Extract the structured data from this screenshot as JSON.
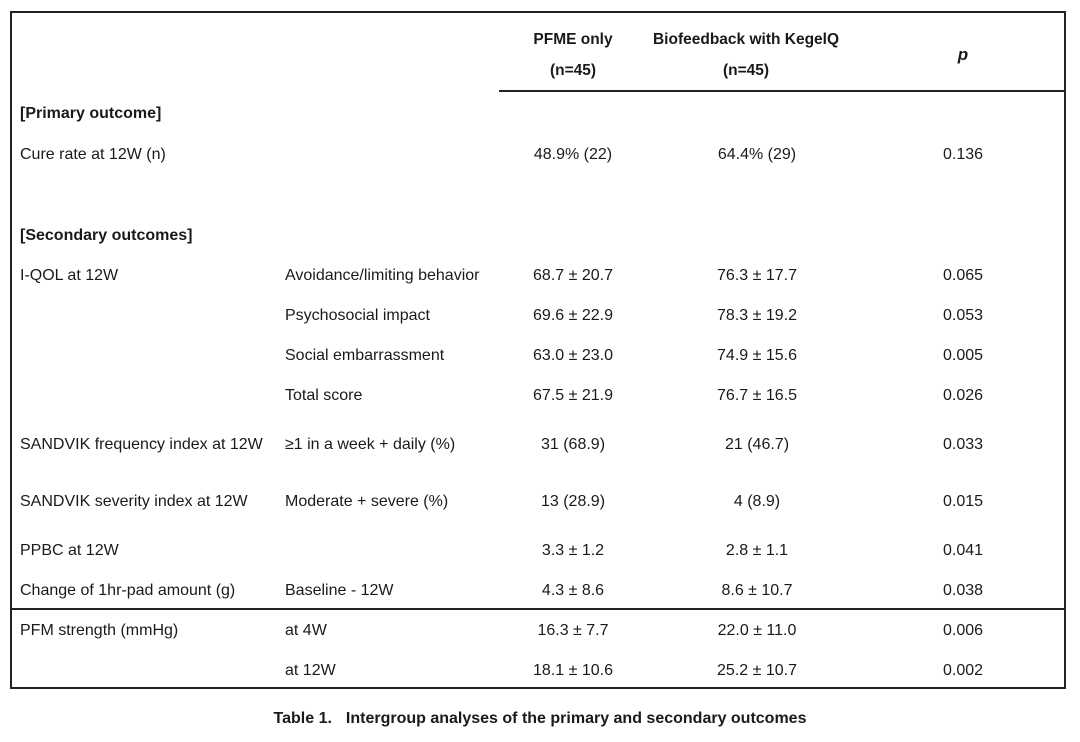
{
  "header": {
    "col1_line1": "PFME only",
    "col1_line2": "(n=45)",
    "col2_line1": "Biofeedback with KegelQ",
    "col2_line2": "(n=45)",
    "col3": "p"
  },
  "sections": {
    "primary": "[Primary outcome]",
    "secondary": "[Secondary outcomes]"
  },
  "rows": [
    {
      "label": "Cure rate at 12W (n)",
      "sub": "",
      "pfme": "48.9% (22)",
      "bio": "64.4% (29)",
      "p": "0.136"
    },
    {
      "label": "I-QOL at 12W",
      "sub": "Avoidance/limiting behavior",
      "pfme": "68.7 ± 20.7",
      "bio": "76.3 ± 17.7",
      "p": "0.065"
    },
    {
      "label": "",
      "sub": "Psychosocial impact",
      "pfme": "69.6 ± 22.9",
      "bio": "78.3 ± 19.2",
      "p": "0.053"
    },
    {
      "label": "",
      "sub": "Social embarrassment",
      "pfme": "63.0 ± 23.0",
      "bio": "74.9 ± 15.6",
      "p": "0.005"
    },
    {
      "label": "",
      "sub": "Total score",
      "pfme": "67.5 ± 21.9",
      "bio": "76.7 ± 16.5",
      "p": "0.026"
    },
    {
      "label": "SANDVIK frequency index at 12W",
      "sub": "≥1 in a week + daily (%)",
      "pfme": "31 (68.9)",
      "bio": "21 (46.7)",
      "p": "0.033"
    },
    {
      "label": "SANDVIK severity index at 12W",
      "sub": "Moderate + severe (%)",
      "pfme": "13 (28.9)",
      "bio": "4 (8.9)",
      "p": "0.015"
    },
    {
      "label": "PPBC at 12W",
      "sub": "",
      "pfme": "3.3 ± 1.2",
      "bio": "2.8 ± 1.1",
      "p": "0.041"
    },
    {
      "label": "Change of 1hr-pad amount (g)",
      "sub": "Baseline - 12W",
      "pfme": "4.3 ± 8.6",
      "bio": "8.6 ± 10.7",
      "p": "0.038"
    },
    {
      "label": "PFM strength (mmHg)",
      "sub": "at 4W",
      "pfme": "16.3 ± 7.7",
      "bio": "22.0 ± 11.0",
      "p": "0.006"
    },
    {
      "label": "",
      "sub": "at 12W",
      "pfme": "18.1 ± 10.6",
      "bio": "25.2 ± 10.7",
      "p": "0.002"
    }
  ],
  "caption": {
    "label": "Table 1.",
    "text": "Intergroup analyses of the primary and secondary outcomes"
  }
}
